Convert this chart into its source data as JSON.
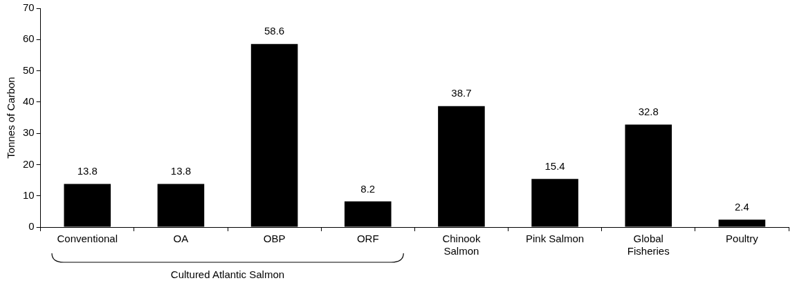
{
  "chart_data": {
    "type": "bar",
    "ylabel": "Tonnes of Carbon",
    "categories": [
      "Conventional",
      "OA",
      "OBP",
      "ORF",
      "Chinook\nSalmon",
      "Pink Salmon",
      "Global\nFisheries",
      "Poultry"
    ],
    "values": [
      13.8,
      13.8,
      58.6,
      8.2,
      38.7,
      15.4,
      32.8,
      2.4
    ],
    "color": "#000000",
    "ylim": [
      0,
      70
    ],
    "yticks": [
      0,
      10,
      20,
      30,
      40,
      50,
      60,
      70
    ],
    "grid": false,
    "legend": false,
    "data_labels": true,
    "annotations": [
      "Cultured Atlantic Salmon"
    ]
  }
}
